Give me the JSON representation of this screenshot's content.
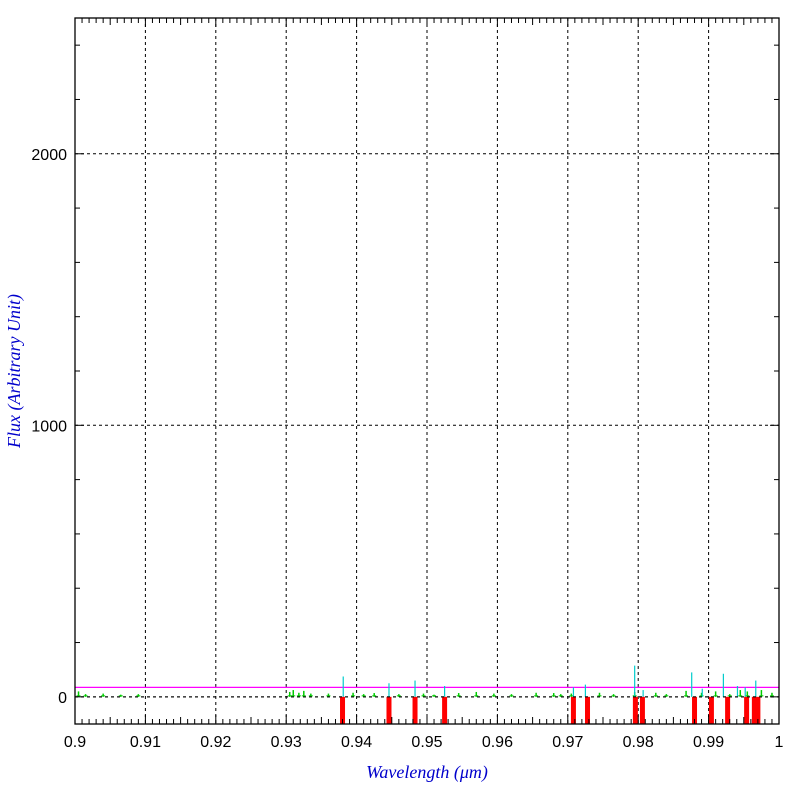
{
  "chart_data": {
    "type": "line",
    "xlabel": "Wavelength (μm)",
    "ylabel": "Flux (Arbitrary Unit)",
    "xlim": [
      0.9,
      1.0
    ],
    "ylim": [
      -100,
      2500
    ],
    "grid": true,
    "x_ticks": [
      {
        "value": 0.9,
        "label": "0.9"
      },
      {
        "value": 0.91,
        "label": "0.91"
      },
      {
        "value": 0.92,
        "label": "0.92"
      },
      {
        "value": 0.93,
        "label": "0.93"
      },
      {
        "value": 0.94,
        "label": "0.94"
      },
      {
        "value": 0.95,
        "label": "0.95"
      },
      {
        "value": 0.96,
        "label": "0.96"
      },
      {
        "value": 0.97,
        "label": "0.97"
      },
      {
        "value": 0.98,
        "label": "0.98"
      },
      {
        "value": 0.99,
        "label": "0.99"
      },
      {
        "value": 1.0,
        "label": "1"
      }
    ],
    "y_ticks": [
      {
        "value": 0,
        "label": "0"
      },
      {
        "value": 1000,
        "label": "1000"
      },
      {
        "value": 2000,
        "label": "2000"
      }
    ],
    "reference_line": {
      "y": 0,
      "color": "#000000",
      "style": "dashed"
    },
    "series": [
      {
        "color": "#ff00ff",
        "style": "horizontal line",
        "x": [
          0.9,
          1.0
        ],
        "values": [
          35,
          35
        ]
      },
      {
        "color": "#00cc00",
        "style": "noise spectrum",
        "x": [
          0.9005,
          0.9015,
          0.904,
          0.9065,
          0.909,
          0.9305,
          0.931,
          0.9318,
          0.9325,
          0.9335,
          0.936,
          0.9395,
          0.941,
          0.9425,
          0.946,
          0.9495,
          0.951,
          0.9545,
          0.957,
          0.9595,
          0.962,
          0.9655,
          0.968,
          0.969,
          0.9705,
          0.9745,
          0.9765,
          0.9795,
          0.9825,
          0.984,
          0.9868,
          0.989,
          0.991,
          0.993,
          0.9945,
          0.9955,
          0.9975,
          0.999
        ],
        "values": [
          20,
          10,
          12,
          8,
          10,
          18,
          25,
          15,
          22,
          12,
          12,
          15,
          10,
          14,
          10,
          12,
          8,
          14,
          18,
          12,
          10,
          15,
          14,
          10,
          12,
          15,
          10,
          18,
          15,
          10,
          22,
          15,
          20,
          10,
          25,
          20,
          25,
          15
        ]
      },
      {
        "color": "#00cccc",
        "style": "emission spikes",
        "x": [
          0.9381,
          0.9446,
          0.9483,
          0.9525,
          0.9708,
          0.9725,
          0.9795,
          0.9807,
          0.9876,
          0.9891,
          0.9921,
          0.9941,
          0.9952,
          0.9967
        ],
        "values": [
          75,
          50,
          60,
          40,
          35,
          45,
          115,
          25,
          90,
          30,
          85,
          40,
          35,
          60
        ]
      },
      {
        "color": "#ff0000",
        "style": "bars",
        "x": [
          0.938,
          0.9446,
          0.9483,
          0.9525,
          0.9708,
          0.9728,
          0.9796,
          0.9806,
          0.988,
          0.9904,
          0.9927,
          0.9954,
          0.9965,
          0.997
        ],
        "values": [
          -100,
          -100,
          -100,
          -100,
          -100,
          -100,
          -100,
          -100,
          -100,
          -100,
          -100,
          -100,
          -100,
          -100
        ]
      }
    ]
  }
}
